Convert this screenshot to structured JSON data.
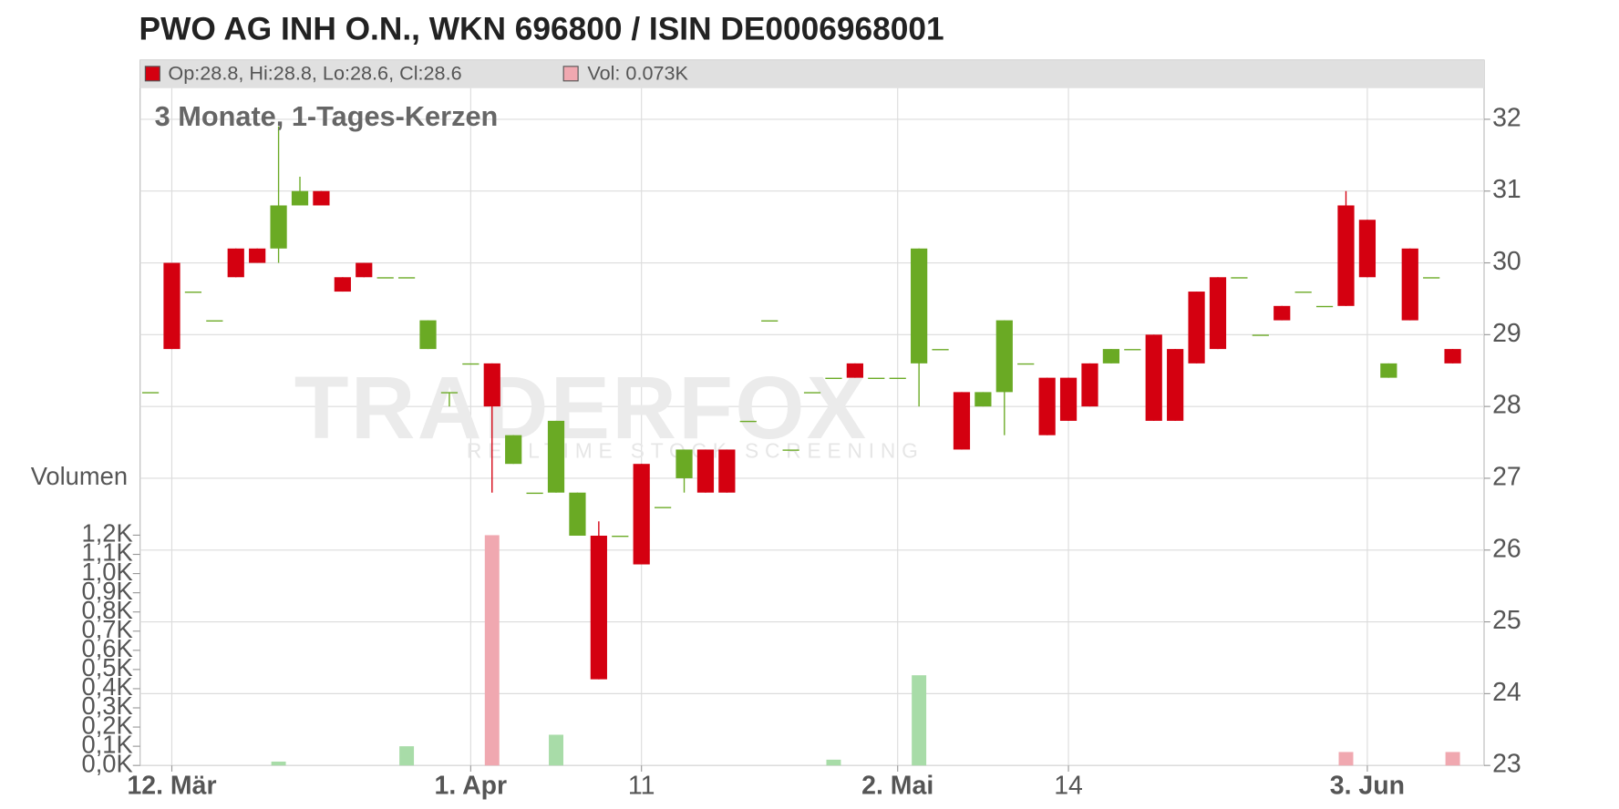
{
  "chart_data": {
    "type": "candlestick",
    "title": "PWO AG INH O.N., WKN 696800 / ISIN DE0006968001",
    "subtitle": "3 Monate, 1-Tages-Kerzen",
    "legend_price": "Op:28.8, Hi:28.8, Lo:28.6, Cl:28.6",
    "legend_volume": "Vol: 0.073K",
    "volume_axis_label": "Volumen",
    "watermark": "TRADERFOX",
    "watermark_tagline": "REALTIME STOCK SCREENING",
    "up_color": "#6aaa24",
    "down_color": "#d40010",
    "volume_up_color": "#a8dca8",
    "volume_down_color": "#f0a8b0",
    "grid": true,
    "categories": [
      null,
      "12. Mär",
      null,
      null,
      null,
      null,
      null,
      null,
      null,
      null,
      null,
      null,
      null,
      null,
      null,
      "1. Apr",
      null,
      null,
      null,
      null,
      null,
      null,
      null,
      "11",
      null,
      null,
      null,
      null,
      null,
      null,
      null,
      null,
      null,
      null,
      null,
      "2. Mai",
      null,
      null,
      null,
      null,
      null,
      null,
      null,
      "14",
      null,
      null,
      null,
      null,
      null,
      null,
      null,
      null,
      null,
      null,
      null,
      null,
      null,
      "3. Jun",
      null,
      null,
      null,
      null
    ],
    "open": [
      28.2,
      30.0,
      29.6,
      29.2,
      30.2,
      30.2,
      30.2,
      30.8,
      31.0,
      29.8,
      30.0,
      29.8,
      29.8,
      28.8,
      28.2,
      28.6,
      28.6,
      27.2,
      26.8,
      26.8,
      26.2,
      26.2,
      26.2,
      27.2,
      26.6,
      27.0,
      27.4,
      27.4,
      27.8,
      29.2,
      27.4,
      28.2,
      28.4,
      28.6,
      28.4,
      28.4,
      28.6,
      28.8,
      28.2,
      28.0,
      28.2,
      28.6,
      28.4,
      28.4,
      28.6,
      28.6,
      28.8,
      29.0,
      28.8,
      29.6,
      29.8,
      29.8,
      29.0,
      29.4,
      29.6,
      29.4,
      30.8,
      30.6,
      28.4,
      30.2,
      29.8,
      28.8
    ],
    "high": [
      28.2,
      30.0,
      29.6,
      29.2,
      30.2,
      30.2,
      31.9,
      31.2,
      31.0,
      29.8,
      30.0,
      29.8,
      29.8,
      29.2,
      28.2,
      28.6,
      28.6,
      27.6,
      26.8,
      27.8,
      26.8,
      26.4,
      26.2,
      27.2,
      26.6,
      27.4,
      27.4,
      27.4,
      27.8,
      29.2,
      27.4,
      28.2,
      28.4,
      28.6,
      28.4,
      28.4,
      30.2,
      28.8,
      28.2,
      28.2,
      29.2,
      28.6,
      28.4,
      28.4,
      28.6,
      28.8,
      28.8,
      29.0,
      28.8,
      29.6,
      29.8,
      29.8,
      29.0,
      29.4,
      29.6,
      29.4,
      31.0,
      30.6,
      28.6,
      30.2,
      29.8,
      28.8
    ],
    "low": [
      28.2,
      28.8,
      29.6,
      29.2,
      29.8,
      30.0,
      30.0,
      30.8,
      30.8,
      29.6,
      29.8,
      29.8,
      29.8,
      28.8,
      28.0,
      28.6,
      26.8,
      27.2,
      26.8,
      26.8,
      26.2,
      24.2,
      26.2,
      25.8,
      26.6,
      26.8,
      26.8,
      26.8,
      27.8,
      29.2,
      27.4,
      28.2,
      28.4,
      28.4,
      28.4,
      28.4,
      28.0,
      28.8,
      27.4,
      28.0,
      27.6,
      28.6,
      27.6,
      27.8,
      28.0,
      28.6,
      28.8,
      27.8,
      27.8,
      28.6,
      28.8,
      29.8,
      29.0,
      29.2,
      29.6,
      29.4,
      29.4,
      29.8,
      28.4,
      29.2,
      29.8,
      28.6
    ],
    "close": [
      28.2,
      28.8,
      29.6,
      29.2,
      29.8,
      30.0,
      30.8,
      31.0,
      30.8,
      29.6,
      29.8,
      29.8,
      29.8,
      29.2,
      28.2,
      28.6,
      28.0,
      27.6,
      26.8,
      27.8,
      26.8,
      24.2,
      26.2,
      25.8,
      26.6,
      27.4,
      26.8,
      26.8,
      27.8,
      29.2,
      27.4,
      28.2,
      28.4,
      28.4,
      28.4,
      28.4,
      30.2,
      28.8,
      27.4,
      28.2,
      29.2,
      28.6,
      27.6,
      27.8,
      28.0,
      28.8,
      28.8,
      27.8,
      27.8,
      28.6,
      28.8,
      29.8,
      29.0,
      29.2,
      29.6,
      29.4,
      29.4,
      29.8,
      28.6,
      29.2,
      29.8,
      28.6
    ],
    "volume": [
      0,
      0,
      0,
      0,
      0,
      0,
      0.02,
      0,
      0,
      0,
      0,
      0,
      0.1,
      0,
      0,
      0,
      1.2,
      0,
      0,
      0.16,
      0,
      0,
      0,
      0,
      0,
      0,
      0,
      0,
      0,
      0,
      0,
      0,
      0.03,
      0,
      0,
      0,
      0.47,
      0,
      0,
      0,
      0,
      0,
      0,
      0,
      0,
      0,
      0,
      0,
      0,
      0,
      0,
      0,
      0,
      0,
      0,
      0,
      0.07,
      0,
      0,
      0,
      0,
      0.07
    ],
    "ylim": [
      23,
      32
    ],
    "yticks": [
      23,
      24,
      25,
      26,
      27,
      28,
      29,
      30,
      31,
      32
    ],
    "y2lim": [
      0,
      1.2
    ],
    "y2ticks": [
      {
        "value": 0,
        "label": "0,0K"
      },
      {
        "value": 0.1,
        "label": "0,1K"
      },
      {
        "value": 0.2,
        "label": "0,2K"
      },
      {
        "value": 0.3,
        "label": "0,3K"
      },
      {
        "value": 0.4,
        "label": "0,4K"
      },
      {
        "value": 0.5,
        "label": "0,5K"
      },
      {
        "value": 0.6,
        "label": "0,6K"
      },
      {
        "value": 0.7,
        "label": "0,7K"
      },
      {
        "value": 0.8,
        "label": "0,8K"
      },
      {
        "value": 0.9,
        "label": "0,9K"
      },
      {
        "value": 1.0,
        "label": "1,0K"
      },
      {
        "value": 1.1,
        "label": "1,1K"
      },
      {
        "value": 1.2,
        "label": "1,2K"
      }
    ]
  }
}
